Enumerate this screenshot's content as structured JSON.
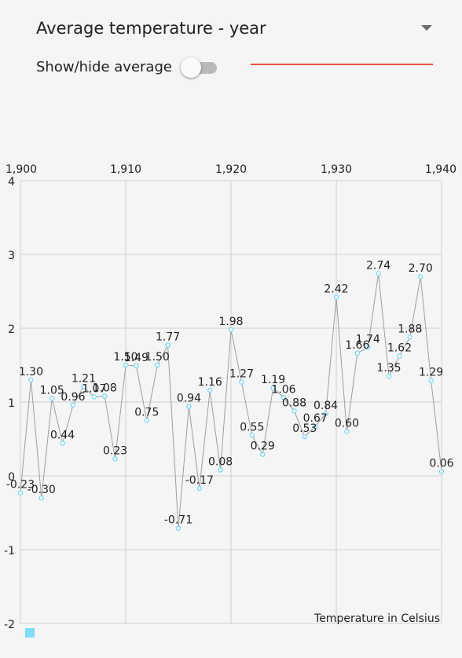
{
  "spinner": {
    "selected": "Average temperature - year",
    "icon": "dropdown-arrow-icon"
  },
  "toggle": {
    "label": "Show/hide average",
    "checked": false
  },
  "colors": {
    "average_line": "#e8514b",
    "series": "#7fdcfa",
    "line": "#9e9e9e",
    "grid": "#cfcfcf"
  },
  "chart_data": {
    "type": "line",
    "title": "",
    "xlabel": "",
    "ylabel": "",
    "annotation": "Temperature in Celsius",
    "xlim": [
      1900,
      1940
    ],
    "ylim": [
      -2,
      4
    ],
    "x_ticks": [
      "1,900",
      "1,910",
      "1,920",
      "1,930",
      "1,940"
    ],
    "y_ticks": [
      "4",
      "3",
      "2",
      "1",
      "0",
      "-1",
      "-2"
    ],
    "grid": true,
    "x": [
      1900,
      1901,
      1902,
      1903,
      1904,
      1905,
      1906,
      1907,
      1908,
      1909,
      1910,
      1911,
      1912,
      1913,
      1914,
      1915,
      1916,
      1917,
      1918,
      1919,
      1920,
      1921,
      1922,
      1923,
      1924,
      1925,
      1926,
      1927,
      1928,
      1929,
      1930,
      1931,
      1932,
      1933,
      1934,
      1935,
      1936,
      1937,
      1938,
      1939,
      1940
    ],
    "series": [
      {
        "values": [
          -0.23,
          1.3,
          -0.3,
          1.05,
          0.44,
          0.96,
          1.21,
          1.07,
          1.08,
          0.23,
          1.5,
          1.49,
          0.75,
          1.5,
          1.77,
          -0.71,
          0.94,
          -0.17,
          1.16,
          0.08,
          1.98,
          1.27,
          0.55,
          0.29,
          1.19,
          1.06,
          0.88,
          0.53,
          0.67,
          0.84,
          2.42,
          0.6,
          1.66,
          1.74,
          2.74,
          1.35,
          1.62,
          1.88,
          2.7,
          1.29,
          0.06
        ],
        "labels": [
          "-0.23",
          "1.30",
          "-0.30",
          "1.05",
          "0.44",
          "0.96",
          "1.21",
          "1.07",
          "1.08",
          "0.23",
          "1.50",
          "1.49",
          "0.75",
          "1.50",
          "1.77",
          "-0.71",
          "0.94",
          "-0.17",
          "1.16",
          "0.08",
          "1.98",
          "1.27",
          "0.55",
          "0.29",
          "1.19",
          "1.06",
          "0.88",
          "0.53",
          "0.67",
          "0.84",
          "2.42",
          "0.60",
          "1.66",
          "1.74",
          "2.74",
          "1.35",
          "1.62",
          "1.88",
          "2.70",
          "1.29",
          "0.06"
        ]
      }
    ],
    "legend": {
      "placement": "bottom-left"
    }
  }
}
